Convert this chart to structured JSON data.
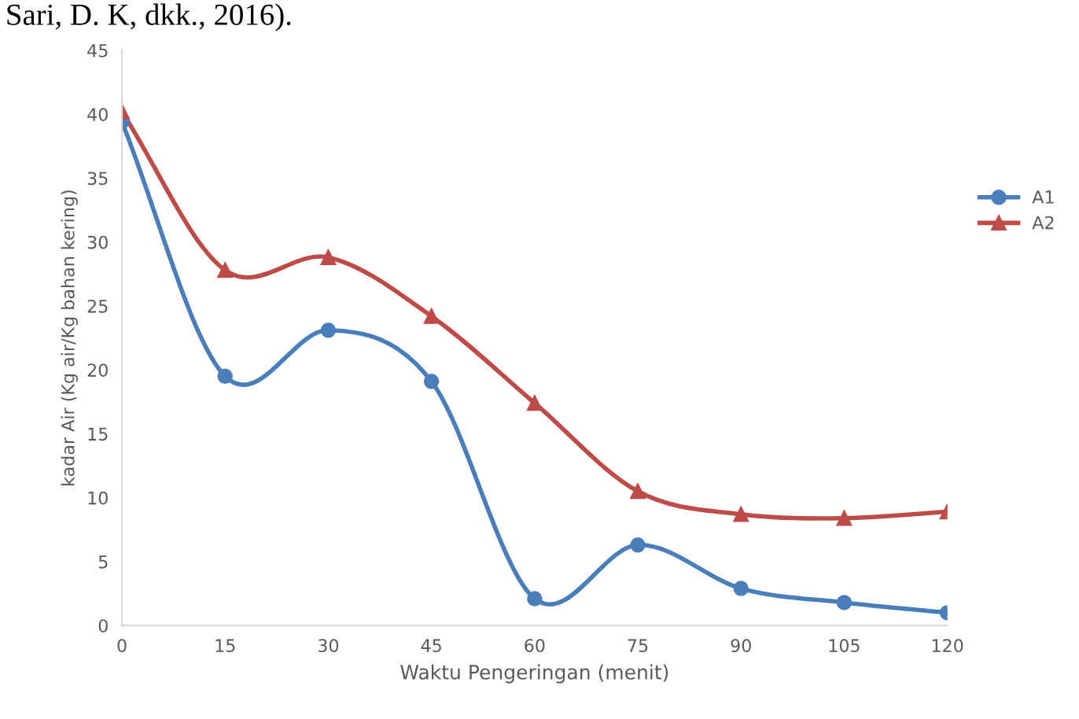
{
  "chart_data": {
    "type": "line",
    "x": [
      0,
      15,
      30,
      45,
      60,
      75,
      90,
      105,
      120
    ],
    "series": [
      {
        "name": "A1",
        "color": "#4a7ebb",
        "marker": "circle",
        "values": [
          39.4,
          19.5,
          23.1,
          19.1,
          2.1,
          6.3,
          2.9,
          1.8,
          1.0
        ]
      },
      {
        "name": "A2",
        "color": "#be4b48",
        "marker": "triangle",
        "values": [
          40.2,
          27.8,
          28.8,
          24.2,
          17.4,
          10.5,
          8.7,
          8.4,
          8.9
        ]
      }
    ],
    "xlabel": "Waktu Pengeringan (menit)",
    "ylabel": "kadar Air (Kg air/Kg bahan kering)",
    "xlim": [
      0,
      120
    ],
    "xticks": [
      0,
      15,
      30,
      45,
      60,
      75,
      90,
      105,
      120
    ],
    "ylim": [
      0,
      45
    ],
    "yticks": [
      0,
      5,
      10,
      15,
      20,
      25,
      30,
      35,
      40,
      45
    ],
    "grid": false,
    "legend": "right",
    "annotations": [
      "Sari, D. K, dkk., 2016)."
    ]
  }
}
